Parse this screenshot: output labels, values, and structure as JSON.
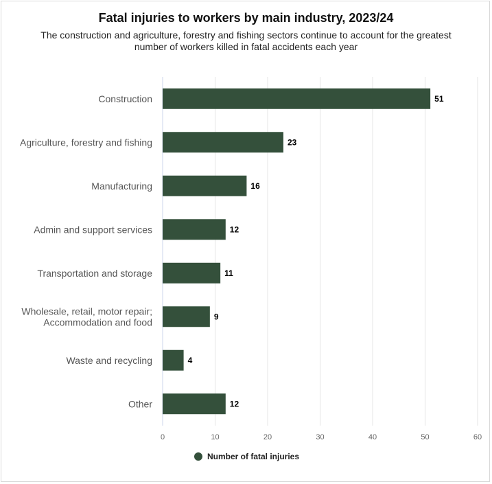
{
  "chart_data": {
    "type": "bar",
    "orientation": "horizontal",
    "title": "Fatal injuries to workers by main industry, 2023/24",
    "subtitle": "The construction and agriculture, forestry and fishing sectors continue to account for the greatest number of workers killed in fatal accidents each year",
    "categories": [
      [
        "Construction"
      ],
      [
        "Agriculture, forestry and fishing"
      ],
      [
        "Manufacturing"
      ],
      [
        "Admin and support services"
      ],
      [
        "Transportation and storage"
      ],
      [
        "Wholesale, retail, motor repair;",
        "Accommodation and food"
      ],
      [
        "Waste and recycling"
      ],
      [
        "Other"
      ]
    ],
    "series": [
      {
        "name": "Number of fatal injuries",
        "values": [
          51,
          23,
          16,
          12,
          11,
          9,
          4,
          12
        ]
      }
    ],
    "xlim": [
      0,
      60
    ],
    "xticks": [
      "0",
      "10",
      "20",
      "30",
      "40",
      "50",
      "60"
    ],
    "xlabel": "",
    "ylabel": "",
    "grid": true,
    "legend_position": "bottom-center",
    "bar_color": "#34503b",
    "grid_color": "#e4e4e4"
  }
}
